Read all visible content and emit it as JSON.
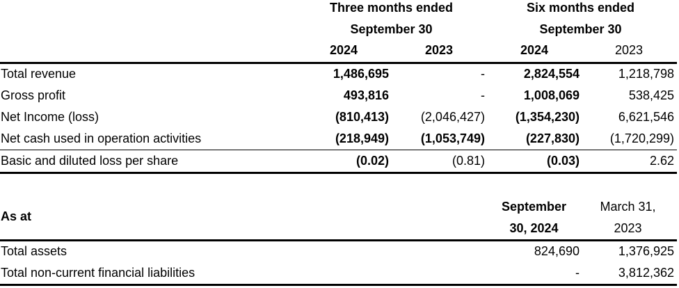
{
  "top_header": {
    "three_months_line1": "Three months ended",
    "three_months_line2": "September 30",
    "six_months_line1": "Six months ended",
    "six_months_line2": "September 30",
    "years": [
      "2024",
      "2023",
      "2024",
      "2023"
    ]
  },
  "top_rows": [
    {
      "label": "Total revenue",
      "values": [
        "1,486,695",
        "-",
        "2,824,554",
        "1,218,798"
      ]
    },
    {
      "label": "Gross profit",
      "values": [
        "493,816",
        "-",
        "1,008,069",
        "538,425"
      ]
    },
    {
      "label": "Net Income (loss)",
      "values": [
        "(810,413)",
        "(2,046,427)",
        "(1,354,230)",
        "6,621,546"
      ]
    },
    {
      "label": "Net cash used in operation activities",
      "values": [
        "(218,949)",
        "(1,053,749)",
        "(227,830)",
        "(1,720,299)"
      ]
    },
    {
      "label": "Basic and diluted loss per share",
      "values": [
        "(0.02)",
        "(0.81)",
        "(0.03)",
        "2.62"
      ]
    }
  ],
  "bottom_header": {
    "as_at": "As at",
    "col1_line1": "September",
    "col1_line2": "30, 2024",
    "col2_line1": "March 31,",
    "col2_line2": "2023"
  },
  "bottom_rows": [
    {
      "label": "Total assets",
      "values": [
        "824,690",
        "1,376,925"
      ]
    },
    {
      "label": "Total non-current financial liabilities",
      "values": [
        "-",
        "3,812,362"
      ]
    }
  ]
}
